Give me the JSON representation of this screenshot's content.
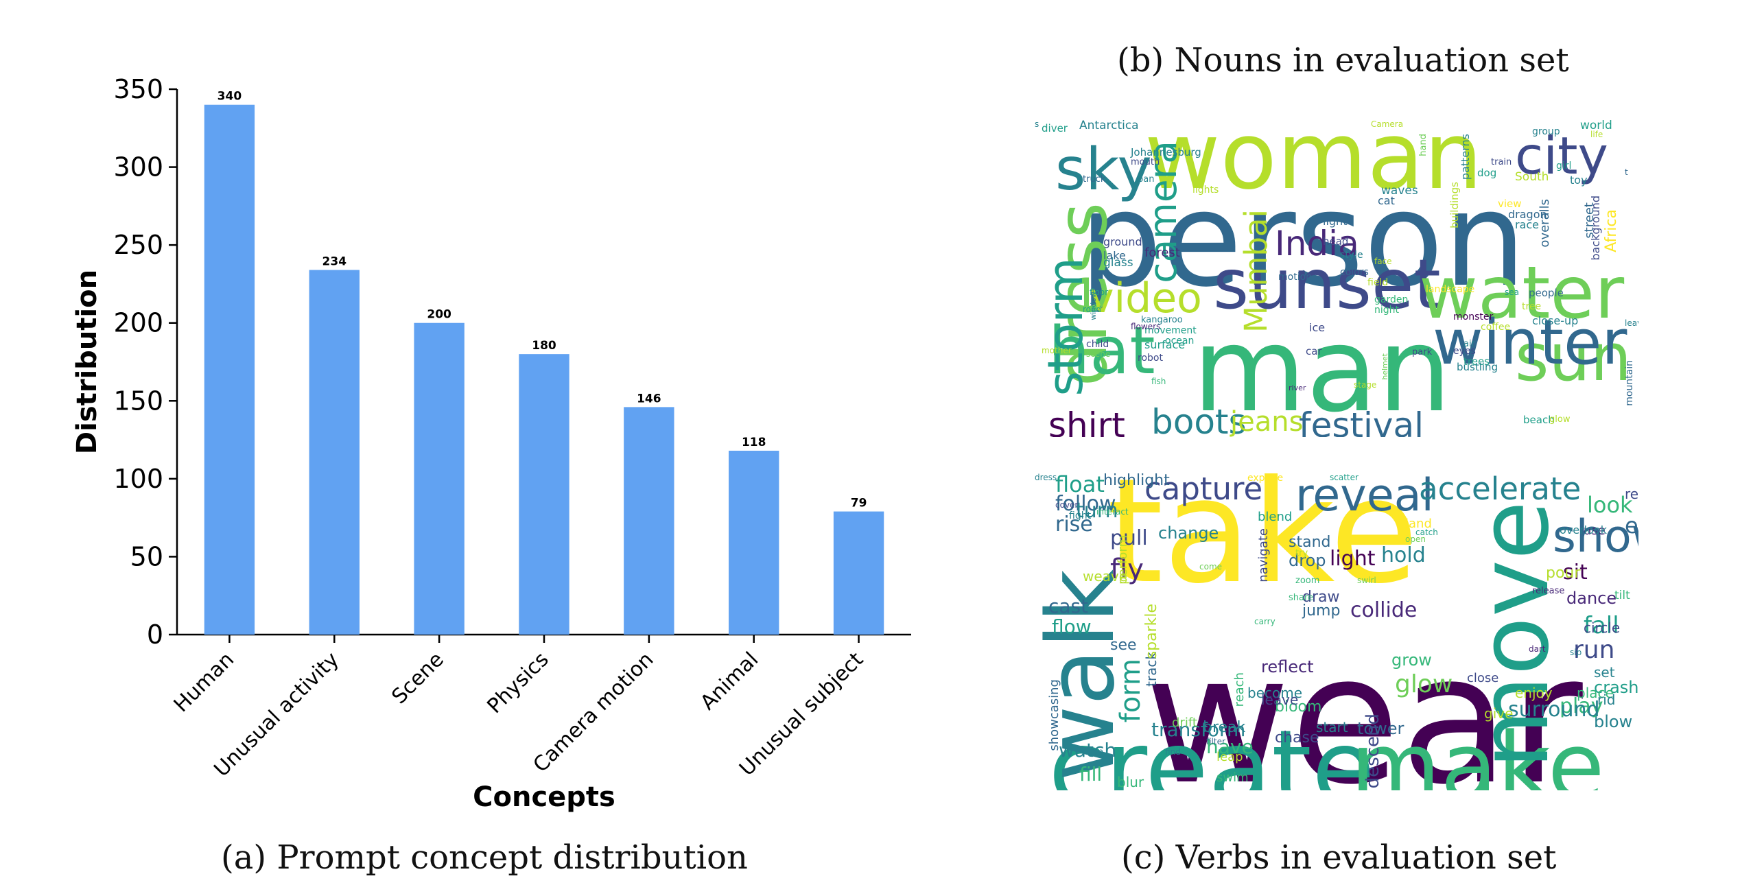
{
  "captions": {
    "a": "(a) Prompt concept distribution",
    "b": "(b) Nouns in evaluation set",
    "c": "(c) Verbs in evaluation set"
  },
  "chart_data": {
    "type": "bar",
    "title": "",
    "xlabel": "Concepts",
    "ylabel": "Distribution",
    "categories": [
      "Human",
      "Unusual activity",
      "Scene",
      "Physics",
      "Camera motion",
      "Animal",
      "Unusual subject"
    ],
    "values": [
      340,
      234,
      200,
      180,
      146,
      118,
      79
    ],
    "value_labels": [
      "340",
      "234",
      "200",
      "180",
      "146",
      "118",
      "79"
    ],
    "ylim": [
      0,
      350
    ],
    "yticks": [
      "0",
      "50",
      "100",
      "150",
      "200",
      "250",
      "300",
      "350"
    ],
    "bar_color": "#61a2f2",
    "grid": false
  },
  "noun_cloud": {
    "words": [
      "person",
      "woman",
      "man",
      "sunset",
      "water",
      "city",
      "sky",
      "dress",
      "hat",
      "sun",
      "winter",
      "storm",
      "video",
      "camera",
      "India",
      "shirt",
      "boots",
      "festival",
      "jeans",
      "Mumbai",
      "forest",
      "glass",
      "ground",
      "lake",
      "light",
      "head",
      "style",
      "colors",
      "motion",
      "field",
      "garden",
      "night",
      "surface",
      "ocean",
      "robot",
      "movement",
      "kangaroo",
      "child",
      "scene",
      "ice",
      "car",
      "park",
      "eyes",
      "air",
      "trees",
      "bustling",
      "monster",
      "coffee",
      "landscape",
      "people",
      "tree",
      "close-up",
      "mountain",
      "beach",
      "glow",
      "Africa",
      "street",
      "background",
      "overalls",
      "view",
      "dragon",
      "race",
      "buildings",
      "patterns",
      "train",
      "dog",
      "South",
      "toy",
      "girl",
      "group",
      "life",
      "world",
      "Antarctica",
      "Johannesburg",
      "mouth",
      "diver",
      "truck",
      "pan",
      "hand",
      "lights",
      "waves",
      "cat",
      "face",
      "window",
      "road",
      "flowers",
      "mother",
      "fish",
      "river",
      "helmet",
      "stage",
      "leaves",
      "sea",
      "floor",
      "Camera",
      "t",
      "s"
    ]
  },
  "verb_cloud": {
    "words": [
      "wear",
      "take",
      "create",
      "make",
      "walk",
      "move",
      "show",
      "reveal",
      "capture",
      "accelerate",
      "float",
      "follow",
      "rise",
      "fly",
      "pull",
      "change",
      "light",
      "hold",
      "look",
      "read",
      "eat",
      "sit",
      "dance",
      "stand",
      "drop",
      "use",
      "overlook",
      "turn",
      "weave",
      "cast",
      "flow",
      "draw",
      "jump",
      "bloom",
      "chase",
      "collide",
      "fall",
      "run",
      "set",
      "crash",
      "place",
      "rid",
      "blow",
      "play",
      "surround",
      "see",
      "form",
      "track",
      "blur",
      "watch",
      "fill",
      "have",
      "leap",
      "swim",
      "transform",
      "break",
      "start",
      "tower",
      "reflect",
      "become",
      "reach",
      "sparkle",
      "showcasing",
      "perform",
      "navigate",
      "blend",
      "land",
      "catch",
      "open",
      "come",
      "carry",
      "zoom",
      "share",
      "swirl",
      "release",
      "tilt",
      "dart",
      "sip",
      "close",
      "give",
      "enjoy",
      "drift",
      "leave",
      "grow",
      "glow",
      "descend",
      "filter",
      "flip",
      "find",
      "cover",
      "try",
      "explore",
      "highlight",
      "scatter",
      "interact",
      "fight",
      "circle",
      "pour",
      "dress"
    ]
  }
}
